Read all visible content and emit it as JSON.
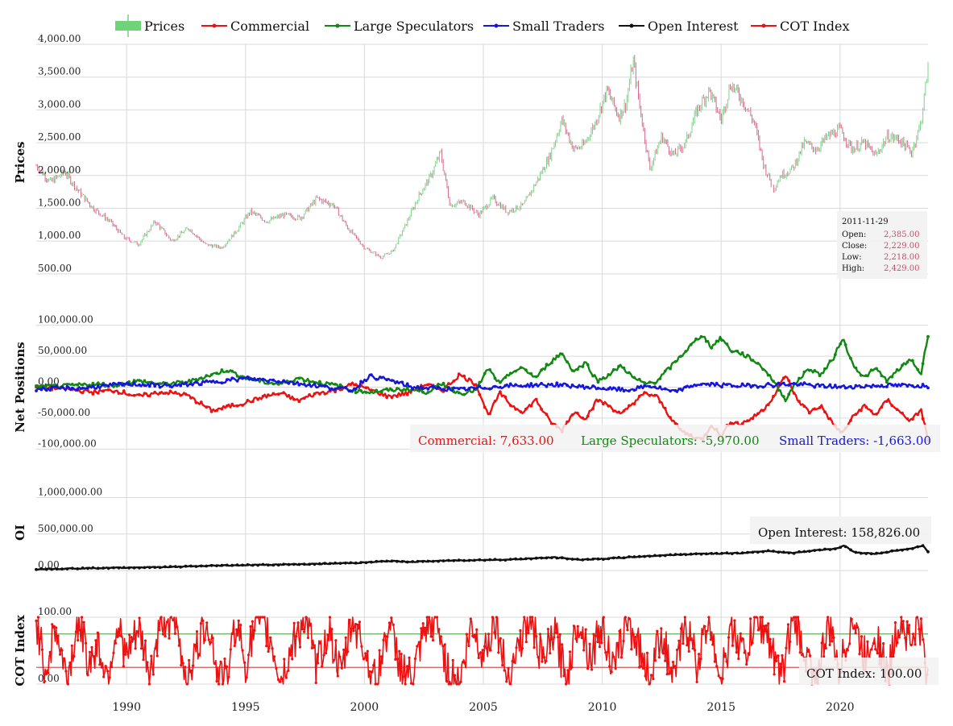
{
  "legend": [
    {
      "label": "Prices",
      "color": "#6fd37a",
      "kind": "candle"
    },
    {
      "label": "Commercial",
      "color": "#ee1111",
      "kind": "line"
    },
    {
      "label": "Large Speculators",
      "color": "#118811",
      "kind": "line"
    },
    {
      "label": "Small Traders",
      "color": "#1515dd",
      "kind": "line"
    },
    {
      "label": "Open Interest",
      "color": "#111111",
      "kind": "line"
    },
    {
      "label": "COT Index",
      "color": "#ee1111",
      "kind": "line"
    }
  ],
  "tooltips": {
    "prices": {
      "date": "2011-11-29",
      "rows": [
        {
          "label": "Open:",
          "value": "2,385.00"
        },
        {
          "label": "Close:",
          "value": "2,229.00"
        },
        {
          "label": "Low:",
          "value": "2,218.00"
        },
        {
          "label": "High:",
          "value": "2,429.00"
        }
      ]
    },
    "net": [
      {
        "text": "Commercial: 7,633.00",
        "color": "#ee1111"
      },
      {
        "text": "Large Speculators: -5,970.00",
        "color": "#118811"
      },
      {
        "text": "Small Traders: -1,663.00",
        "color": "#1515dd"
      }
    ],
    "oi": {
      "text": "Open Interest: 158,826.00",
      "color": "#111111"
    },
    "cot": {
      "text": "COT Index: 100.00",
      "color": "#111111"
    }
  },
  "chart_data": {
    "type": "line",
    "x_axis": {
      "min": 1986.2,
      "max": 2023.7,
      "ticks": [
        1990,
        1995,
        2000,
        2005,
        2010,
        2015,
        2020
      ],
      "grid": true
    },
    "panels": [
      {
        "id": "prices",
        "ylabel": "Prices",
        "chart_type": "candlestick",
        "ylim": [
          400,
          4000
        ],
        "yticks": [
          {
            "v": 500,
            "label": "500.00"
          },
          {
            "v": 1000,
            "label": "1,000.00"
          },
          {
            "v": 1500,
            "label": "1,500.00"
          },
          {
            "v": 2000,
            "label": "2,000.00"
          },
          {
            "v": 2500,
            "label": "2,500.00"
          },
          {
            "v": 3000,
            "label": "3,000.00"
          },
          {
            "v": 3500,
            "label": "3,500.00"
          },
          {
            "v": 4000,
            "label": "4,000.00"
          }
        ],
        "up_color": "#7fd08a",
        "down_color": "#d46a8c",
        "series": [
          {
            "name": "Prices",
            "x": [
              1986.2,
              1986.8,
              1987.4,
              1988.0,
              1988.6,
              1989.3,
              1989.9,
              1990.5,
              1991.2,
              1991.9,
              1992.6,
              1993.3,
              1994.0,
              1994.6,
              1995.2,
              1995.9,
              1996.6,
              1997.3,
              1998.0,
              1998.7,
              1999.3,
              2000.0,
              2000.7,
              2001.2,
              2001.8,
              2002.3,
              2002.8,
              2003.2,
              2003.6,
              2004.2,
              2004.8,
              2005.4,
              2006.0,
              2006.7,
              2007.3,
              2007.8,
              2008.3,
              2008.8,
              2009.2,
              2009.7,
              2010.2,
              2010.7,
              2011.0,
              2011.3,
              2011.6,
              2012.0,
              2012.5,
              2013.0,
              2013.5,
              2014.0,
              2014.5,
              2015.0,
              2015.4,
              2015.9,
              2016.4,
              2016.8,
              2017.2,
              2017.5,
              2018.0,
              2018.5,
              2019.0,
              2019.5,
              2020.0,
              2020.5,
              2021.0,
              2021.5,
              2022.0,
              2022.5,
              2023.0,
              2023.4,
              2023.7
            ],
            "y": [
              2150,
              1900,
              2050,
              1750,
              1500,
              1300,
              1050,
              950,
              1300,
              1000,
              1200,
              950,
              900,
              1150,
              1450,
              1300,
              1400,
              1350,
              1650,
              1550,
              1200,
              900,
              750,
              850,
              1300,
              1700,
              2000,
              2350,
              1550,
              1600,
              1400,
              1650,
              1450,
              1550,
              1950,
              2300,
              2850,
              2400,
              2450,
              2800,
              3300,
              2900,
              3100,
              3750,
              3000,
              2100,
              2600,
              2300,
              2500,
              3000,
              3300,
              2850,
              3400,
              3150,
              2800,
              2150,
              1800,
              2000,
              2100,
              2500,
              2400,
              2600,
              2700,
              2400,
              2500,
              2300,
              2600,
              2550,
              2350,
              2800,
              3650
            ]
          }
        ]
      },
      {
        "id": "net",
        "ylabel": "Net Positions",
        "ylim": [
          -110000,
          110000
        ],
        "yticks": [
          {
            "v": -100000,
            "label": "-100,000.00"
          },
          {
            "v": -50000,
            "label": "-50,000.00"
          },
          {
            "v": 0,
            "label": "0.00"
          },
          {
            "v": 50000,
            "label": "50,000.00"
          },
          {
            "v": 100000,
            "label": "100,000.00"
          }
        ],
        "series": [
          {
            "name": "Commercial",
            "color": "#ee1111",
            "x": [
              1986.2,
              1987.5,
              1988.5,
              1989.5,
              1990.5,
              1991.5,
              1992.5,
              1993.6,
              1994.2,
              1995.0,
              1995.8,
              1996.5,
              1997.2,
              1998.0,
              1998.8,
              1999.5,
              2000.3,
              2001.0,
              2001.8,
              2002.6,
              2003.3,
              2004.0,
              2004.7,
              2005.2,
              2005.7,
              2006.2,
              2006.7,
              2007.2,
              2007.8,
              2008.3,
              2008.8,
              2009.3,
              2009.8,
              2010.3,
              2010.8,
              2011.3,
              2011.8,
              2012.3,
              2012.8,
              2013.3,
              2013.8,
              2014.2,
              2014.6,
              2015.0,
              2015.4,
              2015.8,
              2016.3,
              2016.8,
              2017.3,
              2017.7,
              2018.2,
              2018.7,
              2019.2,
              2019.7,
              2020.1,
              2020.5,
              2021.0,
              2021.5,
              2022.0,
              2022.5,
              2023.0,
              2023.4,
              2023.7
            ],
            "y": [
              0,
              -3000,
              -8000,
              -5000,
              -15000,
              -8000,
              -12000,
              -38000,
              -32000,
              -25000,
              -15000,
              -10000,
              -22000,
              -10000,
              -5000,
              5000,
              -5000,
              -15000,
              -10000,
              5000,
              -5000,
              20000,
              5000,
              -45000,
              -10000,
              -30000,
              -40000,
              -20000,
              -55000,
              -70000,
              -40000,
              -50000,
              -20000,
              -30000,
              -45000,
              -25000,
              -10000,
              -15000,
              -45000,
              -70000,
              -80000,
              -85000,
              -60000,
              -80000,
              -55000,
              -60000,
              -50000,
              -35000,
              -10000,
              20000,
              -20000,
              -40000,
              -30000,
              -60000,
              -75000,
              -50000,
              -30000,
              -45000,
              -20000,
              -40000,
              -55000,
              -35000,
              -85000
            ]
          },
          {
            "name": "Large Speculators",
            "color": "#118811",
            "x": [
              1986.2,
              1987.5,
              1988.5,
              1989.5,
              1990.5,
              1991.5,
              1992.5,
              1993.6,
              1994.2,
              1995.0,
              1995.8,
              1996.5,
              1997.2,
              1998.0,
              1998.8,
              1999.5,
              2000.3,
              2001.0,
              2001.8,
              2002.6,
              2003.3,
              2004.0,
              2004.7,
              2005.2,
              2005.7,
              2006.2,
              2006.7,
              2007.2,
              2007.8,
              2008.3,
              2008.8,
              2009.3,
              2009.8,
              2010.3,
              2010.8,
              2011.3,
              2011.8,
              2012.3,
              2012.8,
              2013.3,
              2013.8,
              2014.2,
              2014.6,
              2015.0,
              2015.4,
              2015.8,
              2016.3,
              2016.8,
              2017.3,
              2017.7,
              2018.2,
              2018.7,
              2019.2,
              2019.7,
              2020.1,
              2020.5,
              2021.0,
              2021.5,
              2022.0,
              2022.5,
              2023.0,
              2023.4,
              2023.7
            ],
            "y": [
              0,
              2000,
              5000,
              3000,
              10000,
              5000,
              8000,
              20000,
              28000,
              15000,
              8000,
              5000,
              15000,
              8000,
              3000,
              -5000,
              -8000,
              -5000,
              -3000,
              -8000,
              5000,
              -10000,
              -5000,
              30000,
              5000,
              25000,
              30000,
              15000,
              40000,
              55000,
              25000,
              40000,
              10000,
              20000,
              35000,
              15000,
              5000,
              10000,
              30000,
              50000,
              70000,
              85000,
              65000,
              80000,
              60000,
              55000,
              45000,
              30000,
              5000,
              -20000,
              10000,
              30000,
              20000,
              45000,
              80000,
              40000,
              15000,
              30000,
              10000,
              30000,
              45000,
              20000,
              85000
            ]
          },
          {
            "name": "Small Traders",
            "color": "#1515dd",
            "x": [
              1986.2,
              1988.0,
              1990.0,
              1992.0,
              1993.5,
              1995.0,
              1996.5,
              1998.0,
              1999.5,
              2000.2,
              2001.0,
              2002.0,
              2004.0,
              2006.0,
              2008.0,
              2010.0,
              2011.0,
              2012.0,
              2013.0,
              2014.0,
              2016.0,
              2018.0,
              2020.0,
              2022.0,
              2023.7
            ],
            "y": [
              -3000,
              -2000,
              5000,
              2000,
              8000,
              14000,
              10000,
              2000,
              -5000,
              18000,
              12000,
              0,
              -4000,
              2000,
              4000,
              -2000,
              -5000,
              2000,
              -8000,
              5000,
              2000,
              5000,
              0,
              3000,
              2000
            ]
          }
        ]
      },
      {
        "id": "oi",
        "ylabel": "OI",
        "ylim": [
          -10000,
          1050000
        ],
        "yticks": [
          {
            "v": 0,
            "label": "0.00"
          },
          {
            "v": 500000,
            "label": "500,000.00"
          },
          {
            "v": 1000000,
            "label": "1,000,000.00"
          }
        ],
        "series": [
          {
            "name": "Open Interest",
            "color": "#111111",
            "x": [
              1986.2,
              1988.0,
              1990.0,
              1992.0,
              1994.0,
              1996.0,
              1998.0,
              2000.0,
              2001.0,
              2002.0,
              2004.0,
              2006.0,
              2008.0,
              2009.0,
              2010.0,
              2011.0,
              2012.0,
              2014.0,
              2016.0,
              2017.0,
              2018.0,
              2019.0,
              2019.8,
              2020.2,
              2020.6,
              2021.5,
              2022.5,
              2023.0,
              2023.5,
              2023.7
            ],
            "y": [
              20000,
              30000,
              40000,
              50000,
              70000,
              80000,
              90000,
              110000,
              130000,
              120000,
              140000,
              150000,
              180000,
              150000,
              160000,
              180000,
              200000,
              230000,
              240000,
              270000,
              240000,
              280000,
              300000,
              340000,
              250000,
              230000,
              280000,
              300000,
              340000,
              260000
            ]
          }
        ]
      },
      {
        "id": "cot",
        "ylabel": "COT Index",
        "ylim": [
          0,
          100
        ],
        "yticks": [
          {
            "v": 0,
            "label": "0.00"
          },
          {
            "v": 100,
            "label": "100.00"
          }
        ],
        "hlines": [
          {
            "value": 75,
            "color": "#5fb25f"
          },
          {
            "value": 25,
            "color": "#cf5a5a"
          }
        ],
        "series": [
          {
            "name": "COT Index",
            "color": "#ee1111",
            "x": [
              1986.2,
              1986.6,
              1987.0,
              1987.5,
              1988.0,
              1988.4,
              1988.8,
              1989.2,
              1989.6,
              1990.0,
              1990.5,
              1991.0,
              1991.5,
              1992.0,
              1992.5,
              1993.0,
              1993.4,
              1993.8,
              1994.2,
              1994.6,
              1995.0,
              1995.5,
              1996.0,
              1996.5,
              1997.0,
              1997.5,
              1998.0,
              1998.5,
              1999.0,
              1999.5,
              2000.0,
              2000.5,
              2001.0,
              2001.5,
              2002.0,
              2002.5,
              2003.0,
              2003.5,
              2004.0,
              2004.5,
              2005.0,
              2005.5,
              2006.0,
              2006.5,
              2007.0,
              2007.5,
              2008.0,
              2008.5,
              2009.0,
              2009.5,
              2010.0,
              2010.5,
              2011.0,
              2011.5,
              2012.0,
              2012.5,
              2013.0,
              2013.5,
              2014.0,
              2014.5,
              2015.0,
              2015.5,
              2016.0,
              2016.5,
              2017.0,
              2017.5,
              2018.0,
              2018.5,
              2019.0,
              2019.5,
              2020.0,
              2020.5,
              2021.0,
              2021.5,
              2022.0,
              2022.5,
              2023.0,
              2023.3,
              2023.7
            ],
            "y": [
              95,
              20,
              85,
              5,
              100,
              30,
              60,
              10,
              90,
              40,
              80,
              15,
              100,
              95,
              10,
              55,
              100,
              20,
              5,
              95,
              30,
              100,
              70,
              5,
              60,
              100,
              25,
              85,
              10,
              100,
              50,
              0,
              90,
              30,
              5,
              70,
              100,
              20,
              0,
              85,
              45,
              100,
              10,
              60,
              100,
              30,
              80,
              5,
              100,
              40,
              90,
              15,
              100,
              60,
              10,
              80,
              0,
              95,
              30,
              100,
              10,
              85,
              40,
              100,
              70,
              5,
              100,
              50,
              0,
              90,
              20,
              100,
              40,
              80,
              10,
              100,
              60,
              95,
              5
            ]
          }
        ]
      }
    ]
  }
}
